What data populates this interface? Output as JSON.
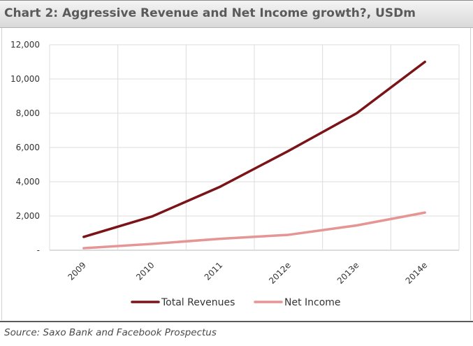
{
  "header": {
    "title": "Chart 2: Aggressive Revenue and Net Income growth?, USDm"
  },
  "footer": {
    "source": "Source: Saxo Bank and Facebook Prospectus"
  },
  "colors": {
    "total_revenues": "#7b1418",
    "net_income": "#e59593",
    "grid": "#dcdcdc"
  },
  "chart_data": {
    "type": "line",
    "title": "Chart 2: Aggressive Revenue and Net Income growth?, USDm",
    "xlabel": "",
    "ylabel": "",
    "categories": [
      "2009",
      "2010",
      "2011",
      "2012e",
      "2013e",
      "2014e"
    ],
    "y_ticks": [
      "-",
      "2,000",
      "4,000",
      "6,000",
      "8,000",
      "10,000",
      "12,000"
    ],
    "y_tick_values": [
      0,
      2000,
      4000,
      6000,
      8000,
      10000,
      12000
    ],
    "ylim": [
      0,
      12000
    ],
    "grid": true,
    "legend_position": "bottom",
    "series": [
      {
        "name": "Total Revenues",
        "values": [
          780,
          1970,
          3710,
          5800,
          8000,
          11000
        ]
      },
      {
        "name": "Net Income",
        "values": [
          120,
          370,
          670,
          900,
          1450,
          2200
        ]
      }
    ]
  }
}
